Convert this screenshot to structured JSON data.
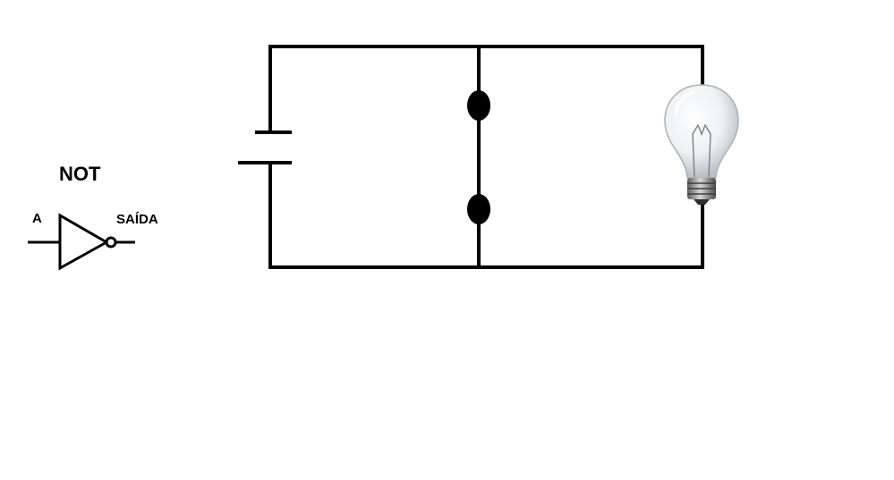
{
  "not_gate": {
    "title": "NOT",
    "input_label": "A",
    "output_label": "SAÍDA"
  },
  "circuit": {
    "components": [
      "battery",
      "switch",
      "light-bulb"
    ]
  },
  "colors": {
    "line": "#000000",
    "background": "#ffffff",
    "bulb_glass": "#e8ecef",
    "bulb_base": "#8a8a8a"
  }
}
